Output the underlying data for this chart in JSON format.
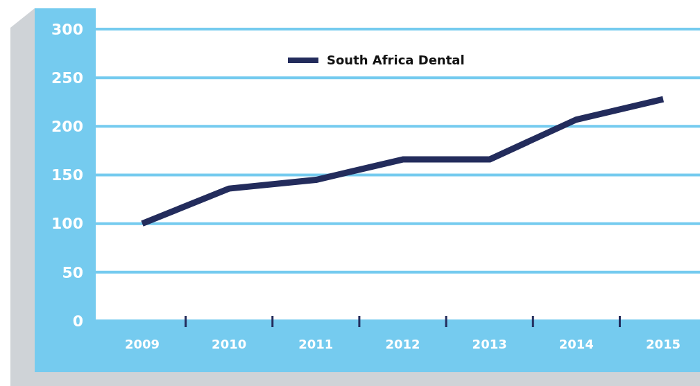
{
  "chart_data": {
    "type": "line",
    "categories": [
      "2009",
      "2010",
      "2011",
      "2012",
      "2013",
      "2014",
      "2015"
    ],
    "series": [
      {
        "name": "South Africa Dental",
        "color": "#232c5c",
        "values": [
          100,
          136,
          145,
          166,
          166,
          207,
          228
        ]
      }
    ],
    "ylim": [
      0,
      300
    ],
    "yticks": [
      0,
      50,
      100,
      150,
      200,
      250,
      300
    ],
    "grid": "y",
    "legend": "top",
    "marker": "none",
    "line_style": "solid"
  }
}
